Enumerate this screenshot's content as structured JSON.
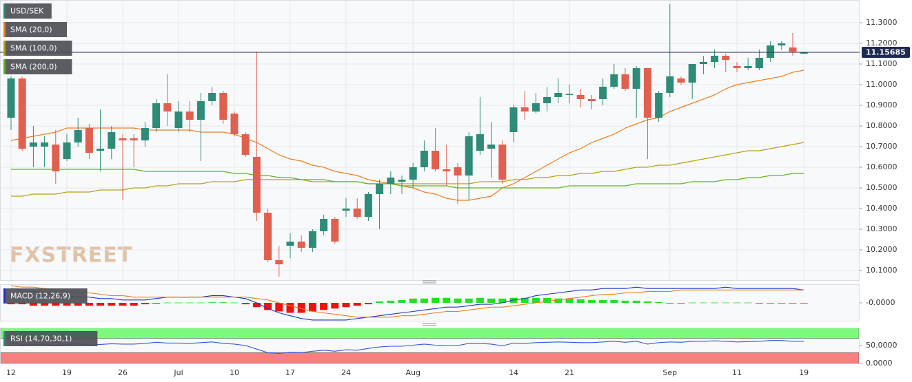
{
  "chart_data": [
    {
      "type": "candlestick",
      "name": "USD/SEK",
      "color": "#2e8b78",
      "down_color": "#e0604f",
      "categories": [
        "12",
        null,
        null,
        null,
        null,
        "19",
        null,
        null,
        null,
        null,
        "26",
        null,
        null,
        null,
        null,
        "Jul",
        null,
        null,
        null,
        null,
        "10",
        null,
        null,
        null,
        null,
        "17",
        null,
        null,
        null,
        null,
        "24",
        null,
        null,
        null,
        null,
        null,
        "Aug",
        null,
        null,
        null,
        null,
        null,
        null,
        null,
        null,
        "14",
        null,
        null,
        null,
        null,
        "21",
        null,
        null,
        null,
        null,
        null,
        null,
        null,
        null,
        "Sep",
        null,
        null,
        null,
        null,
        null,
        "11",
        null,
        null,
        null,
        null,
        null,
        "19"
      ],
      "open": [
        10.84,
        11.03,
        10.7,
        10.7,
        10.71,
        10.64,
        10.72,
        10.79,
        10.68,
        10.69,
        10.74,
        10.74,
        10.73,
        10.79,
        10.91,
        10.79,
        10.87,
        10.83,
        10.92,
        10.96,
        10.86,
        10.76,
        10.65,
        10.38,
        10.15,
        10.22,
        10.24,
        10.21,
        10.29,
        10.35,
        10.39,
        10.4,
        10.36,
        10.47,
        10.52,
        10.53,
        10.54,
        10.6,
        10.68,
        10.59,
        10.6,
        10.56,
        10.68,
        10.69,
        10.71,
        10.77,
        10.89,
        10.87,
        10.91,
        10.94,
        10.95,
        10.95,
        10.93,
        10.93,
        10.99,
        11.05,
        10.98,
        11.08,
        10.84,
        10.96,
        11.03,
        11.01,
        11.1,
        11.11,
        11.14,
        11.09,
        11.08,
        11.08,
        11.13,
        11.19,
        11.18,
        11.15
      ],
      "high": [
        11.04,
        11.04,
        10.8,
        10.75,
        10.78,
        10.76,
        10.84,
        10.81,
        10.88,
        10.8,
        10.76,
        10.76,
        10.82,
        10.93,
        11.05,
        10.92,
        10.92,
        10.96,
        10.99,
        10.97,
        10.87,
        10.77,
        11.16,
        10.4,
        10.22,
        10.28,
        10.27,
        10.3,
        10.37,
        10.36,
        10.45,
        10.45,
        10.48,
        10.54,
        10.58,
        10.56,
        10.62,
        10.73,
        10.79,
        10.71,
        10.62,
        10.77,
        10.94,
        10.82,
        10.73,
        10.9,
        10.97,
        10.96,
        10.99,
        11.03,
        11.0,
        10.98,
        10.95,
        11.03,
        11.1,
        11.08,
        11.09,
        11.08,
        10.97,
        11.39,
        11.04,
        11.1,
        11.14,
        11.17,
        11.15,
        11.11,
        11.13,
        11.17,
        11.21,
        11.21,
        11.25,
        11.16
      ],
      "low": [
        10.78,
        10.68,
        10.6,
        10.6,
        10.52,
        10.63,
        10.7,
        10.64,
        10.58,
        10.64,
        10.44,
        10.6,
        10.7,
        10.77,
        10.8,
        10.77,
        10.77,
        10.63,
        10.9,
        10.81,
        10.75,
        10.65,
        10.34,
        10.14,
        10.07,
        10.16,
        10.19,
        10.19,
        10.27,
        10.23,
        10.36,
        10.35,
        10.34,
        10.3,
        10.47,
        10.47,
        10.5,
        10.58,
        10.58,
        10.51,
        10.42,
        10.44,
        10.66,
        10.55,
        10.52,
        10.72,
        10.83,
        10.86,
        10.87,
        10.91,
        10.91,
        10.89,
        10.88,
        10.9,
        10.98,
        10.97,
        10.84,
        10.64,
        10.82,
        10.94,
        11.0,
        10.93,
        11.05,
        11.08,
        11.06,
        11.06,
        11.07,
        11.07,
        11.11,
        11.17,
        11.14,
        11.15
      ],
      "close": [
        11.03,
        10.69,
        10.72,
        10.72,
        10.58,
        10.72,
        10.78,
        10.67,
        10.69,
        10.77,
        10.73,
        10.73,
        10.79,
        10.91,
        10.87,
        10.87,
        10.83,
        10.92,
        10.96,
        10.83,
        10.76,
        10.66,
        10.38,
        10.15,
        10.13,
        10.24,
        10.21,
        10.29,
        10.35,
        10.24,
        10.4,
        10.36,
        10.47,
        10.52,
        10.55,
        10.54,
        10.6,
        10.68,
        10.59,
        10.58,
        10.56,
        10.75,
        10.76,
        10.71,
        10.54,
        10.89,
        10.87,
        10.91,
        10.94,
        10.96,
        10.955,
        10.93,
        10.92,
        10.99,
        11.05,
        10.98,
        11.08,
        10.84,
        10.96,
        11.04,
        11.01,
        11.1,
        11.11,
        11.14,
        11.12,
        11.08,
        11.09,
        11.13,
        11.19,
        11.2,
        11.16,
        11.15685
      ],
      "series": [
        {
          "name": "SMA (20,0)",
          "color": "#f07d1a",
          "values": [
            10.73,
            10.74,
            10.75,
            10.76,
            10.77,
            10.79,
            10.79,
            10.79,
            10.79,
            10.79,
            10.79,
            10.79,
            10.78,
            10.78,
            10.78,
            10.78,
            10.78,
            10.77,
            10.77,
            10.77,
            10.76,
            10.74,
            10.72,
            10.69,
            10.66,
            10.64,
            10.63,
            10.61,
            10.6,
            10.58,
            10.57,
            10.56,
            10.54,
            10.53,
            10.52,
            10.51,
            10.5,
            10.48,
            10.47,
            10.45,
            10.44,
            10.44,
            10.45,
            10.46,
            10.5,
            10.52,
            10.55,
            10.58,
            10.61,
            10.64,
            10.67,
            10.69,
            10.72,
            10.74,
            10.76,
            10.79,
            10.81,
            10.83,
            10.84,
            10.87,
            10.89,
            10.91,
            10.93,
            10.95,
            10.98,
            11.0,
            11.01,
            11.02,
            11.03,
            11.04,
            11.06,
            11.07
          ]
        },
        {
          "name": "SMA (100,0)",
          "color": "#b5a210",
          "values": [
            10.46,
            10.46,
            10.47,
            10.47,
            10.47,
            10.48,
            10.48,
            10.48,
            10.49,
            10.49,
            10.49,
            10.5,
            10.5,
            10.51,
            10.51,
            10.52,
            10.52,
            10.52,
            10.53,
            10.53,
            10.53,
            10.54,
            10.54,
            10.54,
            10.54,
            10.54,
            10.54,
            10.53,
            10.53,
            10.53,
            10.53,
            10.53,
            10.52,
            10.52,
            10.52,
            10.52,
            10.52,
            10.52,
            10.52,
            10.52,
            10.52,
            10.52,
            10.53,
            10.53,
            10.53,
            10.54,
            10.54,
            10.55,
            10.55,
            10.56,
            10.56,
            10.57,
            10.57,
            10.58,
            10.58,
            10.59,
            10.6,
            10.6,
            10.61,
            10.61,
            10.62,
            10.63,
            10.64,
            10.65,
            10.66,
            10.67,
            10.68,
            10.68,
            10.69,
            10.7,
            10.71,
            10.72
          ]
        },
        {
          "name": "SMA (200,0)",
          "color": "#5fb321",
          "values": [
            10.59,
            10.59,
            10.59,
            10.59,
            10.59,
            10.59,
            10.59,
            10.59,
            10.59,
            10.59,
            10.59,
            10.59,
            10.58,
            10.58,
            10.58,
            10.58,
            10.58,
            10.58,
            10.58,
            10.58,
            10.57,
            10.57,
            10.56,
            10.56,
            10.55,
            10.55,
            10.54,
            10.54,
            10.54,
            10.53,
            10.53,
            10.53,
            10.52,
            10.52,
            10.52,
            10.51,
            10.51,
            10.51,
            10.51,
            10.51,
            10.5,
            10.5,
            10.5,
            10.5,
            10.5,
            10.5,
            10.5,
            10.5,
            10.5,
            10.5,
            10.51,
            10.51,
            10.51,
            10.51,
            10.51,
            10.51,
            10.52,
            10.52,
            10.52,
            10.52,
            10.52,
            10.53,
            10.53,
            10.53,
            10.54,
            10.54,
            10.55,
            10.55,
            10.56,
            10.56,
            10.57,
            10.57
          ]
        }
      ],
      "ylim": [
        10.05,
        11.41
      ],
      "yticks": [
        {
          "value": 11.3,
          "label": "11.3000"
        },
        {
          "value": 11.2,
          "label": "11.2000"
        },
        {
          "value": 11.1,
          "label": "11.1000"
        },
        {
          "value": 11.0,
          "label": "11.0000"
        },
        {
          "value": 10.9,
          "label": "10.9000"
        },
        {
          "value": 10.8,
          "label": "10.8000"
        },
        {
          "value": 10.7,
          "label": "10.7000"
        },
        {
          "value": 10.6,
          "label": "10.6000"
        },
        {
          "value": 10.5,
          "label": "10.5000"
        },
        {
          "value": 10.4,
          "label": "10.4000"
        },
        {
          "value": 10.3,
          "label": "10.3000"
        },
        {
          "value": 10.2,
          "label": "10.2000"
        },
        {
          "value": 10.1,
          "label": "10.1000"
        }
      ],
      "grid": true
    },
    {
      "type": "macd",
      "name": "MACD (12,26,9)",
      "color": "#2233cc",
      "ylim": [
        -0.13,
        0.13
      ],
      "yticks": [
        {
          "value": 0,
          "label": "-0.0000"
        }
      ],
      "histogram": {
        "color": "#22e022",
        "negative_color": "#ee1111",
        "values": [
          -0.01,
          -0.01,
          -0.02,
          -0.02,
          -0.02,
          -0.02,
          -0.02,
          -0.02,
          -0.02,
          -0.02,
          -0.02,
          -0.02,
          -0.01,
          -0.005,
          0.002,
          0.002,
          0.002,
          0.002,
          0.004,
          0.004,
          0.002,
          -0.01,
          -0.03,
          -0.05,
          -0.06,
          -0.07,
          -0.07,
          -0.06,
          -0.05,
          -0.04,
          -0.03,
          -0.02,
          -0.01,
          0.01,
          0.015,
          0.02,
          0.03,
          0.03,
          0.035,
          0.035,
          0.03,
          0.03,
          0.035,
          0.03,
          0.03,
          0.035,
          0.035,
          0.035,
          0.035,
          0.03,
          0.03,
          0.025,
          0.02,
          0.02,
          0.02,
          0.015,
          0.015,
          0.01,
          0.005,
          -0.002,
          -0.002,
          0.002,
          0.002,
          0.002,
          0.002,
          0.002,
          0.002,
          -0.002,
          -0.002,
          -0.002,
          -0.002,
          -0.002
        ]
      },
      "series": [
        {
          "color": "#2233cc",
          "values": [
            0.1,
            0.09,
            0.08,
            0.07,
            0.06,
            0.05,
            0.04,
            0.04,
            0.03,
            0.03,
            0.02,
            0.02,
            0.02,
            0.03,
            0.04,
            0.04,
            0.04,
            0.04,
            0.05,
            0.05,
            0.04,
            0.03,
            0.0,
            -0.04,
            -0.07,
            -0.09,
            -0.11,
            -0.12,
            -0.12,
            -0.12,
            -0.12,
            -0.11,
            -0.1,
            -0.09,
            -0.08,
            -0.07,
            -0.06,
            -0.05,
            -0.04,
            -0.03,
            -0.03,
            -0.02,
            -0.01,
            -0.01,
            0.0,
            0.02,
            0.03,
            0.05,
            0.06,
            0.07,
            0.08,
            0.09,
            0.09,
            0.1,
            0.1,
            0.1,
            0.11,
            0.1,
            0.1,
            0.1,
            0.1,
            0.1,
            0.1,
            0.1,
            0.11,
            0.1,
            0.1,
            0.1,
            0.1,
            0.1,
            0.1,
            0.09
          ]
        },
        {
          "color": "#f07d1a",
          "values": [
            0.12,
            0.11,
            0.11,
            0.1,
            0.09,
            0.08,
            0.07,
            0.07,
            0.06,
            0.05,
            0.05,
            0.04,
            0.04,
            0.04,
            0.04,
            0.04,
            0.04,
            0.04,
            0.04,
            0.04,
            0.04,
            0.04,
            0.03,
            0.02,
            0.0,
            -0.02,
            -0.04,
            -0.06,
            -0.07,
            -0.08,
            -0.09,
            -0.1,
            -0.1,
            -0.1,
            -0.1,
            -0.09,
            -0.09,
            -0.08,
            -0.07,
            -0.06,
            -0.06,
            -0.05,
            -0.04,
            -0.03,
            -0.03,
            -0.02,
            -0.01,
            0.0,
            0.01,
            0.02,
            0.03,
            0.04,
            0.05,
            0.06,
            0.06,
            0.07,
            0.07,
            0.08,
            0.08,
            0.08,
            0.09,
            0.09,
            0.09,
            0.09,
            0.09,
            0.09,
            0.09,
            0.09,
            0.09,
            0.09,
            0.09,
            0.09
          ]
        }
      ]
    },
    {
      "type": "line",
      "name": "RSI (14,70,30,1)",
      "color": "#2a8a74",
      "ylim": [
        0,
        100
      ],
      "yticks": [
        {
          "value": 50,
          "label": "50.0000"
        },
        {
          "value": 0,
          "label": "0.0000"
        }
      ],
      "bands": [
        {
          "from": 70,
          "to": 100,
          "color": "#7dfa7d"
        },
        {
          "from": 0,
          "to": 30,
          "color": "#fa7f7f"
        }
      ],
      "series": [
        {
          "color": "#3355dd",
          "values": [
            58,
            52,
            53,
            54,
            50,
            53,
            55,
            52,
            53,
            55,
            54,
            54,
            56,
            59,
            57,
            57,
            56,
            58,
            60,
            56,
            54,
            50,
            40,
            30,
            28,
            31,
            30,
            34,
            37,
            34,
            38,
            37,
            42,
            46,
            48,
            48,
            51,
            54,
            51,
            50,
            50,
            56,
            56,
            54,
            49,
            57,
            56,
            58,
            59,
            60,
            59,
            58,
            58,
            60,
            62,
            59,
            62,
            54,
            58,
            60,
            59,
            62,
            62,
            63,
            62,
            60,
            61,
            62,
            64,
            64,
            62,
            62
          ]
        }
      ]
    }
  ],
  "watermark": "FXSTREET"
}
